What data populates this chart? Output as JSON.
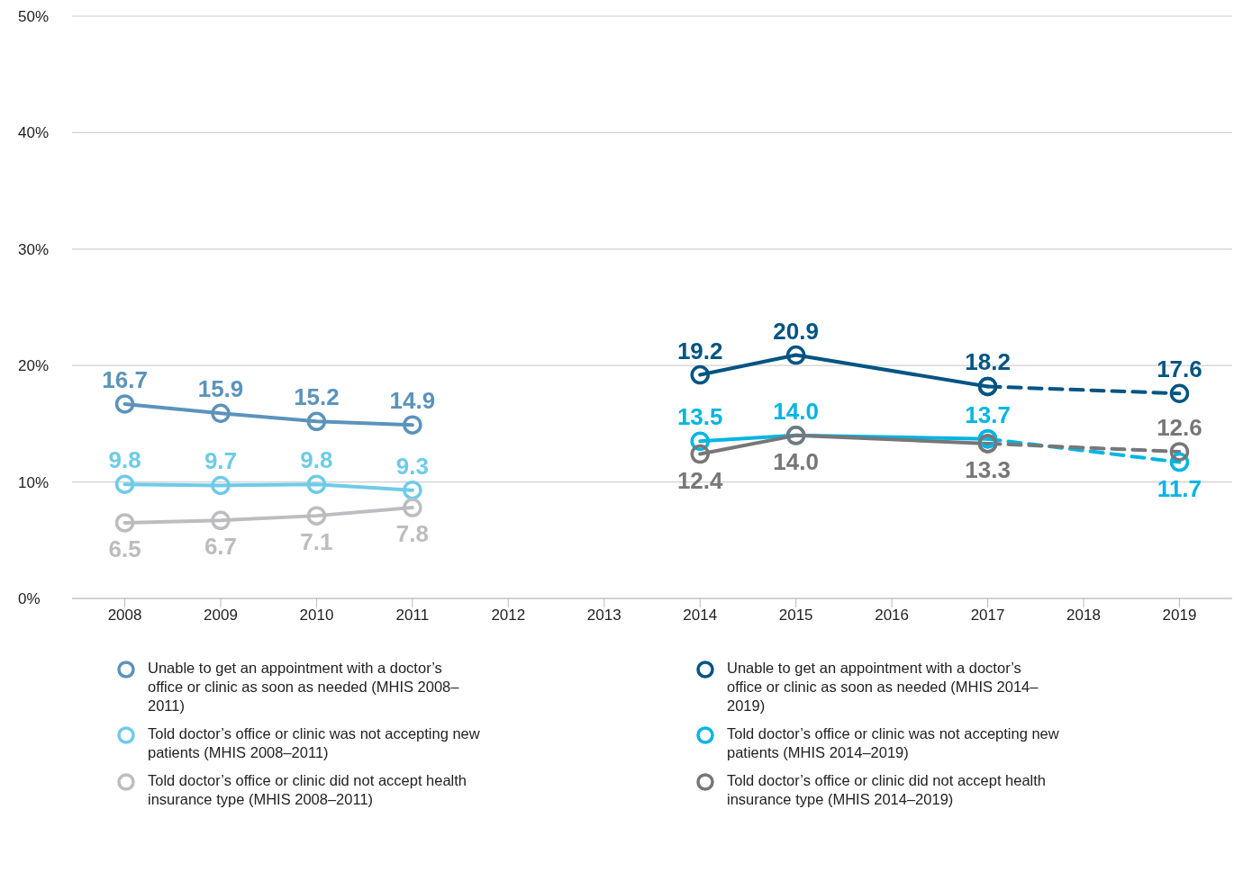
{
  "chart_data": {
    "type": "line",
    "x": [
      2008,
      2009,
      2010,
      2011
    ],
    "xlim": [
      2007.45,
      2019.55
    ],
    "xticks": [
      2008,
      2009,
      2010,
      2011,
      2012,
      2013,
      2014,
      2015,
      2016,
      2017,
      2018,
      2019
    ],
    "ylim": [
      0,
      50
    ],
    "yticks": [
      {
        "value": 0,
        "label": "0%"
      },
      {
        "value": 10,
        "label": "10%"
      },
      {
        "value": 20,
        "label": "20%"
      },
      {
        "value": 30,
        "label": "30%"
      },
      {
        "value": 40,
        "label": "40%"
      },
      {
        "value": 50,
        "label": "50%"
      }
    ],
    "grid": "y",
    "legend": "bottom",
    "marker": "circle",
    "line_style": "solid",
    "series": [
      {
        "name": "Unable to get an appointment with a doctor’s office or clinic as soon as needed (MHIS 2008–2011)",
        "color": "#5b93bb",
        "values": [
          16.7,
          15.9,
          15.2,
          14.9
        ],
        "value_labels": [
          "16.7",
          "15.9",
          "15.2",
          "14.9"
        ]
      },
      {
        "name": "Told doctor’s office or clinic was not accepting new patients (MHIS 2008–2011)",
        "color": "#6fcbe8",
        "values": [
          9.8,
          9.7,
          9.8,
          9.3
        ],
        "value_labels": [
          "9.8",
          "9.7",
          "9.8",
          "9.3"
        ]
      },
      {
        "name": "Told doctor’s office or clinic did not accept health insurance type (MHIS 2008–2011)",
        "color": "#bdbdc0",
        "values": [
          6.5,
          6.7,
          7.1,
          7.8
        ],
        "value_labels": [
          "6.5",
          "6.7",
          "7.1",
          "7.8"
        ]
      },
      {
        "name": "Unable to get an appointment with a doctor’s office or clinic as soon as needed (MHIS 2014–2019)",
        "color": "#005483",
        "x": [
          2014,
          2015,
          2017
        ],
        "values": [
          19.2,
          20.9,
          18.2
        ],
        "value_labels": [
          "19.2",
          "20.9",
          "18.2"
        ]
      },
      {
        "name": "Told doctor’s office or clinic was not accepting new patients (MHIS 2014–2019)",
        "color": "#00b5e2",
        "x": [
          2014,
          2015,
          2017
        ],
        "values": [
          13.5,
          14.0,
          13.7
        ],
        "value_labels": [
          "13.5",
          "14.0",
          "13.7"
        ]
      },
      {
        "name": "Told doctor’s office or clinic did not accept health insurance type (MHIS 2014–2019)",
        "color": "#777779",
        "x": [
          2014,
          2015,
          2017
        ],
        "values": [
          12.4,
          14.0,
          13.3
        ],
        "value_labels": [
          "12.4",
          "14.0",
          "13.3"
        ]
      },
      {
        "color": "#005483",
        "x": [
          2017,
          2019
        ],
        "values": [
          18.2,
          17.6
        ],
        "value_labels": [
          null,
          "17.6"
        ],
        "line_style": "dashed"
      },
      {
        "color": "#00b5e2",
        "x": [
          2017,
          2019
        ],
        "values": [
          13.7,
          11.7
        ],
        "value_labels": [
          null,
          "11.7"
        ],
        "line_style": "dashed"
      },
      {
        "color": "#777779",
        "x": [
          2017,
          2019
        ],
        "values": [
          13.3,
          12.6
        ],
        "value_labels": [
          null,
          "12.6"
        ],
        "line_style": "dashed"
      }
    ]
  }
}
